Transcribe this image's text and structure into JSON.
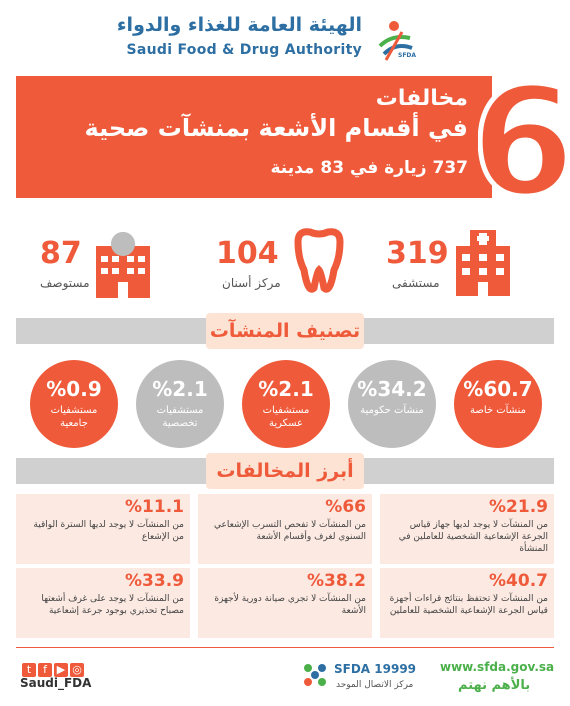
{
  "header": {
    "org_name_ar": "الهيئة العامة للغذاء والدواء",
    "org_name_en": "Saudi Food & Drug Authority",
    "logo_small": "SFDA"
  },
  "banner": {
    "big_number": "6",
    "title_line1": "مخالفات",
    "title_line2": "في أقسام الأشعة بمنشآت صحية",
    "subtitle": "737 زيارة في 83 مدينة"
  },
  "stats": [
    {
      "value": "319",
      "label": "مستشفى",
      "icon": "hospital-building-icon"
    },
    {
      "value": "104",
      "label": "مركز أسنان",
      "icon": "tooth-icon"
    },
    {
      "value": "87",
      "label": "مستوصف",
      "icon": "clinic-building-icon"
    }
  ],
  "classification": {
    "title": "تصنيف المنشآت",
    "items": [
      {
        "pct": "%60.7",
        "label": "منشآت خاصة",
        "style": "orange"
      },
      {
        "pct": "%34.2",
        "label": "منشآت حكومية",
        "style": "grey"
      },
      {
        "pct": "%2.1",
        "label": "مستشفيات عسكرية",
        "style": "orange"
      },
      {
        "pct": "%2.1",
        "label": "مستشفيات تخصصية",
        "style": "grey"
      },
      {
        "pct": "%0.9",
        "label": "مستشفيات جامعية",
        "style": "orange"
      }
    ]
  },
  "violations": {
    "title": "أبرز المخالفات",
    "items": [
      {
        "pct": "%21.9",
        "text": "من المنشآت لا يوجد لديها جهاز قياس الجرعة الإشعاعية الشخصية للعاملين في المنشأة"
      },
      {
        "pct": "%66",
        "text": "من المنشآت لا تفحص التسرب الإشعاعي السنوي لغرف وأقسام الأشعة"
      },
      {
        "pct": "%11.1",
        "text": "من المنشآت لا يوجد لديها السترة الواقية من الإشعاع"
      },
      {
        "pct": "%40.7",
        "text": "من المنشآت لا تحتفظ بنتائج قراءات أجهزة قياس الجرعة الإشعاعية الشخصية للعاملين"
      },
      {
        "pct": "%38.2",
        "text": "من المنشآت لا تجري صيانة دورية لأجهزة الأشعة"
      },
      {
        "pct": "%33.9",
        "text": "من المنشآت لا يوجد على غرف أشعتها مصباح تحذيري بوجود جرعة إشعاعية"
      }
    ]
  },
  "footer": {
    "handle": "Saudi_FDA",
    "hotline_label": "SFDA 19999",
    "hotline_sub": "مركز الاتصال الموحد",
    "website": "www.sfda.gov.sa",
    "slogan": "بالأهم نهتم",
    "social_icons": [
      "twitter-icon",
      "facebook-icon",
      "youtube-icon",
      "instagram-icon"
    ]
  },
  "colors": {
    "accent": "#ee5a3a",
    "grey": "#bdbdbd",
    "brand_blue": "#2e6fa3"
  }
}
